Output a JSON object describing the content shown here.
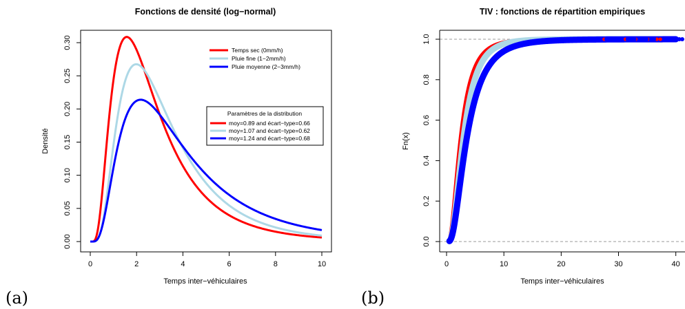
{
  "chart_data": [
    {
      "type": "line",
      "label": "(a)",
      "title": "Fonctions de densité (log−normal)",
      "xlabel": "Temps inter−véhiculaires",
      "ylabel": "Densité",
      "xlim": [
        0,
        10
      ],
      "ylim": [
        0,
        0.3
      ],
      "xticks": [
        "0",
        "2",
        "4",
        "6",
        "8",
        "10"
      ],
      "yticks": [
        "0.00",
        "0.05",
        "0.10",
        "0.15",
        "0.20",
        "0.25",
        "0.30"
      ],
      "grid": false,
      "legend_position": "top-right",
      "series": [
        {
          "name": "Temps sec (0mm/h)",
          "color": "#ff0000",
          "meanlog": 0.89,
          "sdlog": 0.66
        },
        {
          "name": "Pluie fine (1−2mm/h)",
          "color": "#add8e6",
          "meanlog": 1.07,
          "sdlog": 0.62
        },
        {
          "name": "Pluie moyenne (2−3mm/h)",
          "color": "#0000ff",
          "meanlog": 1.24,
          "sdlog": 0.68
        }
      ],
      "legend2": {
        "title": "Paramètres de la distribution",
        "entries": [
          {
            "text": "moy=0.89 and écart−type=0.66",
            "color": "#ff0000"
          },
          {
            "text": "moy=1.07 and écart−type=0.62",
            "color": "#add8e6"
          },
          {
            "text": "moy=1.24 and écart−type=0.68",
            "color": "#0000ff"
          }
        ]
      }
    },
    {
      "type": "line",
      "label": "(b)",
      "title": "TIV : fonctions de répartition empiriques",
      "xlabel": "Temps inter−véhiculaires",
      "ylabel": "Fn(x)",
      "xlim": [
        0,
        41
      ],
      "ylim": [
        0,
        1
      ],
      "xticks": [
        "0",
        "10",
        "20",
        "30",
        "40"
      ],
      "yticks": [
        "0.0",
        "0.2",
        "0.4",
        "0.6",
        "0.8",
        "1.0"
      ],
      "reference_lines": [
        0,
        1
      ],
      "series": [
        {
          "color": "#ff0000",
          "meanlog": 0.89,
          "sdlog": 0.66
        },
        {
          "color": "#add8e6",
          "meanlog": 1.07,
          "sdlog": 0.62
        },
        {
          "color": "#0000ff",
          "meanlog": 1.24,
          "sdlog": 0.68
        }
      ]
    }
  ]
}
